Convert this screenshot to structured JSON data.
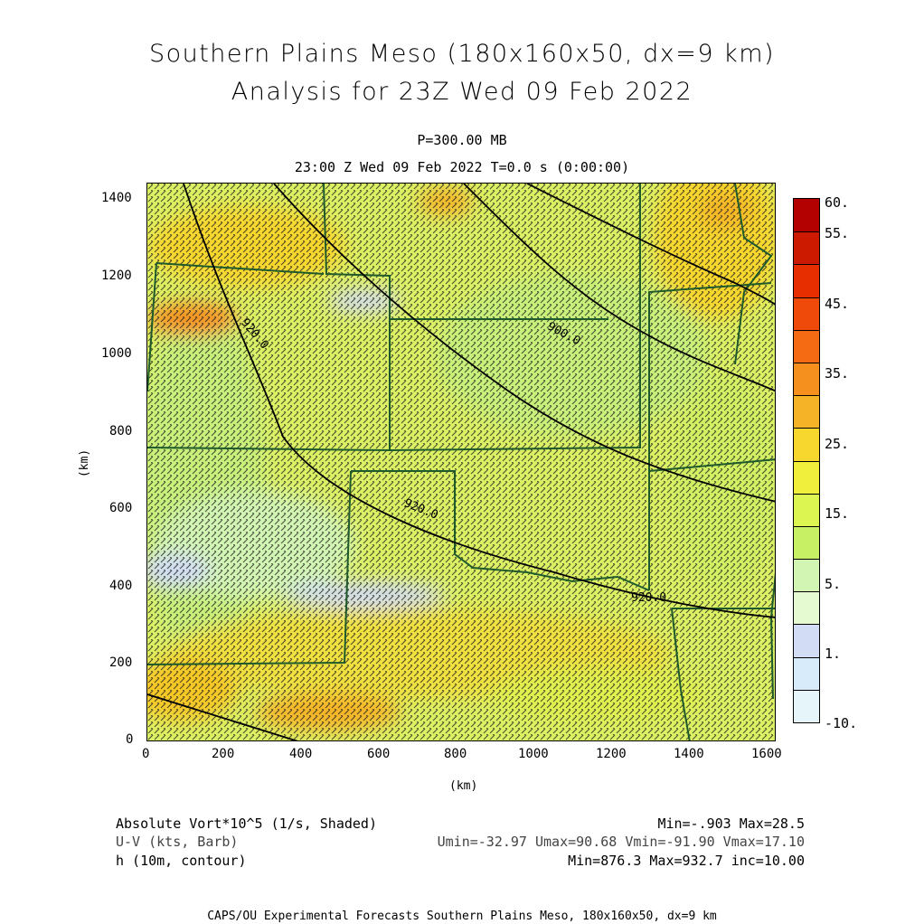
{
  "title": {
    "line1": "Southern Plains Meso (180x160x50, dx=9 km)",
    "line2": "Analysis for 23Z Wed 09 Feb 2022"
  },
  "subtitle": {
    "level": "P=300.00 MB",
    "time": "23:00 Z Wed 09 Feb 2022    T=0.0 s (0:00:00)"
  },
  "axes": {
    "x_unit": "(km)",
    "y_unit": "(km)",
    "x_ticks": [
      "0",
      "200",
      "400",
      "600",
      "800",
      "1000",
      "1200",
      "1400",
      "1600"
    ],
    "y_ticks": [
      "1400",
      "1200",
      "1000",
      "800",
      "600",
      "400",
      "200",
      "0"
    ]
  },
  "contours": {
    "labels": [
      "920.0",
      "900.0",
      "920.0",
      "920.0"
    ]
  },
  "colorbar": {
    "labels": [
      "60.",
      "55.",
      "45.",
      "35.",
      "25.",
      "15.",
      "5.",
      "1.",
      "-10."
    ],
    "colors": [
      "#b30000",
      "#cc1a00",
      "#e62e00",
      "#f04a0a",
      "#f56b14",
      "#f5901e",
      "#f5b428",
      "#f7d72d",
      "#f0f03c",
      "#dcf550",
      "#c8f064",
      "#d2f5b4",
      "#e6fad2",
      "#d2dcf5",
      "#d7ebfa",
      "#e6f5fa"
    ]
  },
  "footer": {
    "left": [
      "Absolute Vort*10^5 (1/s, Shaded)",
      "U-V (kts, Barb)",
      "h (10m, contour)"
    ],
    "right": [
      "Min=-.903 Max=28.5",
      "Umin=-32.97 Umax=90.68 Vmin=-91.90 Vmax=17.10",
      "Min=876.3 Max=932.7 inc=10.00"
    ],
    "credit": "CAPS/OU Experimental Forecasts  Southern Plains Meso, 180x160x50, dx=9 km"
  }
}
